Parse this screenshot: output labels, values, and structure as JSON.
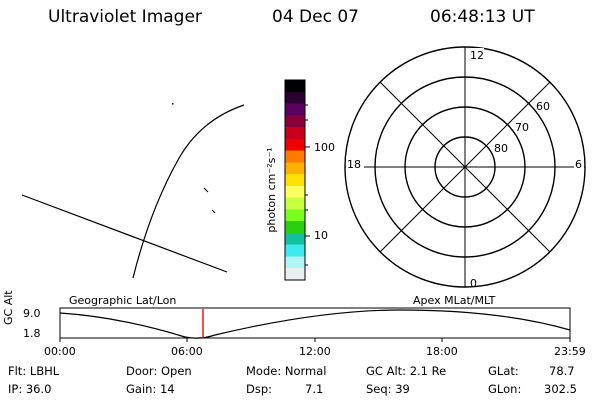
{
  "header": {
    "title": "Ultraviolet Imager",
    "date": "04 Dec 07",
    "time": "06:48:13 UT"
  },
  "colorbar": {
    "unit_label": "photon cm⁻²s⁻¹",
    "ticks": [
      "100",
      "10"
    ],
    "colors": [
      "#000000",
      "#2a0030",
      "#5a0060",
      "#8a0038",
      "#c8001e",
      "#ee0000",
      "#ff7a00",
      "#ffb000",
      "#ffe000",
      "#ffff60",
      "#c8ff40",
      "#78ff20",
      "#2ad010",
      "#10c0a0",
      "#40e8f0",
      "#b0f4f4",
      "#e8f0f0"
    ]
  },
  "polar": {
    "labels": {
      "top": "12",
      "left": "18",
      "right": "6",
      "bottom": "0"
    },
    "ring_labels": [
      "60",
      "70",
      "80"
    ]
  },
  "timeline": {
    "geo_label": "Geographic Lat/Lon",
    "apex_label": "Apex MLat/MLT",
    "axis_label": "GC Alt",
    "y_ticks": [
      "9.0",
      "1.8"
    ],
    "x_ticks": [
      "00:00",
      "06:00",
      "12:00",
      "18:00",
      "23:59"
    ],
    "marker_color": "#ff0000"
  },
  "status": {
    "filter": "Flt: LBHL",
    "ip": "IP: 36.0",
    "door": "Door: Open",
    "gain": "Gain: 14",
    "mode": "Mode: Normal",
    "dsp": "Dsp:",
    "dsp_value": "7.1",
    "gc_alt": "GC Alt: 2.1 Re",
    "seq": "Seq: 39",
    "glat": "GLat:",
    "glat_value": "78.7",
    "glon": "GLon:",
    "glon_value": "302.5"
  }
}
